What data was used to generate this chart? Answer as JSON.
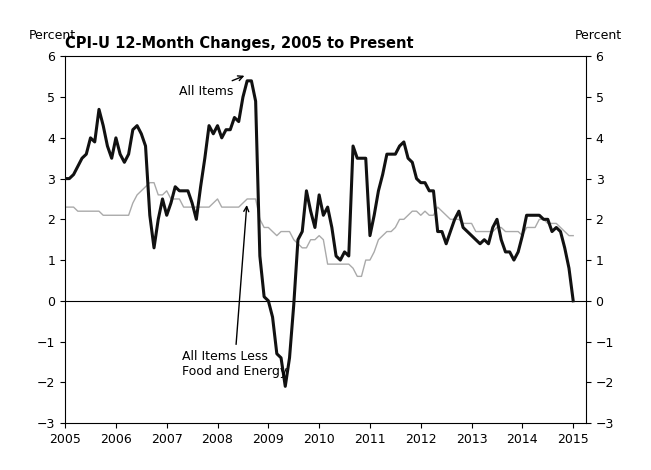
{
  "title": "CPI-U 12-Month Changes, 2005 to Present",
  "ylabel_left": "Percent",
  "ylabel_right": "Percent",
  "ylim": [
    -3,
    6
  ],
  "yticks": [
    -3,
    -2,
    -1,
    0,
    1,
    2,
    3,
    4,
    5,
    6
  ],
  "xlim_start": 2005.0,
  "xlim_end": 2015.25,
  "xticks": [
    2005,
    2006,
    2007,
    2008,
    2009,
    2010,
    2011,
    2012,
    2013,
    2014,
    2015
  ],
  "background_color": "#ffffff",
  "all_items_color": "#111111",
  "core_color": "#aaaaaa",
  "all_items_linewidth": 2.2,
  "core_linewidth": 1.0,
  "annotation_all_items": "All Items",
  "annotation_core": "All Items Less\nFood and Energy",
  "all_items_x": [
    2005.0,
    2005.083,
    2005.167,
    2005.25,
    2005.333,
    2005.417,
    2005.5,
    2005.583,
    2005.667,
    2005.75,
    2005.833,
    2005.917,
    2006.0,
    2006.083,
    2006.167,
    2006.25,
    2006.333,
    2006.417,
    2006.5,
    2006.583,
    2006.667,
    2006.75,
    2006.833,
    2006.917,
    2007.0,
    2007.083,
    2007.167,
    2007.25,
    2007.333,
    2007.417,
    2007.5,
    2007.583,
    2007.667,
    2007.75,
    2007.833,
    2007.917,
    2008.0,
    2008.083,
    2008.167,
    2008.25,
    2008.333,
    2008.417,
    2008.5,
    2008.583,
    2008.667,
    2008.75,
    2008.833,
    2008.917,
    2009.0,
    2009.083,
    2009.167,
    2009.25,
    2009.333,
    2009.417,
    2009.5,
    2009.583,
    2009.667,
    2009.75,
    2009.833,
    2009.917,
    2010.0,
    2010.083,
    2010.167,
    2010.25,
    2010.333,
    2010.417,
    2010.5,
    2010.583,
    2010.667,
    2010.75,
    2010.833,
    2010.917,
    2011.0,
    2011.083,
    2011.167,
    2011.25,
    2011.333,
    2011.417,
    2011.5,
    2011.583,
    2011.667,
    2011.75,
    2011.833,
    2011.917,
    2012.0,
    2012.083,
    2012.167,
    2012.25,
    2012.333,
    2012.417,
    2012.5,
    2012.583,
    2012.667,
    2012.75,
    2012.833,
    2012.917,
    2013.0,
    2013.083,
    2013.167,
    2013.25,
    2013.333,
    2013.417,
    2013.5,
    2013.583,
    2013.667,
    2013.75,
    2013.833,
    2013.917,
    2014.0,
    2014.083,
    2014.167,
    2014.25,
    2014.333,
    2014.417,
    2014.5,
    2014.583,
    2014.667,
    2014.75,
    2014.833,
    2014.917,
    2015.0
  ],
  "all_items_y": [
    3.0,
    3.0,
    3.1,
    3.3,
    3.5,
    3.6,
    4.0,
    3.9,
    4.7,
    4.3,
    3.8,
    3.5,
    4.0,
    3.6,
    3.4,
    3.6,
    4.2,
    4.3,
    4.1,
    3.8,
    2.1,
    1.3,
    2.0,
    2.5,
    2.1,
    2.4,
    2.8,
    2.7,
    2.7,
    2.7,
    2.4,
    2.0,
    2.8,
    3.5,
    4.3,
    4.1,
    4.3,
    4.0,
    4.2,
    4.2,
    4.5,
    4.4,
    5.0,
    5.4,
    5.4,
    4.9,
    1.1,
    0.1,
    0.0,
    -0.4,
    -1.3,
    -1.4,
    -2.1,
    -1.4,
    -0.1,
    1.5,
    1.7,
    2.7,
    2.2,
    1.8,
    2.6,
    2.1,
    2.3,
    1.8,
    1.1,
    1.0,
    1.2,
    1.1,
    3.8,
    3.5,
    3.5,
    3.5,
    1.6,
    2.1,
    2.7,
    3.1,
    3.6,
    3.6,
    3.6,
    3.8,
    3.9,
    3.5,
    3.4,
    3.0,
    2.9,
    2.9,
    2.7,
    2.7,
    1.7,
    1.7,
    1.4,
    1.7,
    2.0,
    2.2,
    1.8,
    1.7,
    1.6,
    1.5,
    1.4,
    1.5,
    1.4,
    1.8,
    2.0,
    1.5,
    1.2,
    1.2,
    1.0,
    1.2,
    1.6,
    2.1,
    2.1,
    2.1,
    2.1,
    2.0,
    2.0,
    1.7,
    1.8,
    1.7,
    1.3,
    0.8,
    0.0
  ],
  "core_x": [
    2005.0,
    2005.083,
    2005.167,
    2005.25,
    2005.333,
    2005.417,
    2005.5,
    2005.583,
    2005.667,
    2005.75,
    2005.833,
    2005.917,
    2006.0,
    2006.083,
    2006.167,
    2006.25,
    2006.333,
    2006.417,
    2006.5,
    2006.583,
    2006.667,
    2006.75,
    2006.833,
    2006.917,
    2007.0,
    2007.083,
    2007.167,
    2007.25,
    2007.333,
    2007.417,
    2007.5,
    2007.583,
    2007.667,
    2007.75,
    2007.833,
    2007.917,
    2008.0,
    2008.083,
    2008.167,
    2008.25,
    2008.333,
    2008.417,
    2008.5,
    2008.583,
    2008.667,
    2008.75,
    2008.833,
    2008.917,
    2009.0,
    2009.083,
    2009.167,
    2009.25,
    2009.333,
    2009.417,
    2009.5,
    2009.583,
    2009.667,
    2009.75,
    2009.833,
    2009.917,
    2010.0,
    2010.083,
    2010.167,
    2010.25,
    2010.333,
    2010.417,
    2010.5,
    2010.583,
    2010.667,
    2010.75,
    2010.833,
    2010.917,
    2011.0,
    2011.083,
    2011.167,
    2011.25,
    2011.333,
    2011.417,
    2011.5,
    2011.583,
    2011.667,
    2011.75,
    2011.833,
    2011.917,
    2012.0,
    2012.083,
    2012.167,
    2012.25,
    2012.333,
    2012.417,
    2012.5,
    2012.583,
    2012.667,
    2012.75,
    2012.833,
    2012.917,
    2013.0,
    2013.083,
    2013.167,
    2013.25,
    2013.333,
    2013.417,
    2013.5,
    2013.583,
    2013.667,
    2013.75,
    2013.833,
    2013.917,
    2014.0,
    2014.083,
    2014.167,
    2014.25,
    2014.333,
    2014.417,
    2014.5,
    2014.583,
    2014.667,
    2014.75,
    2014.833,
    2014.917,
    2015.0
  ],
  "core_y": [
    2.3,
    2.3,
    2.3,
    2.2,
    2.2,
    2.2,
    2.2,
    2.2,
    2.2,
    2.1,
    2.1,
    2.1,
    2.1,
    2.1,
    2.1,
    2.1,
    2.4,
    2.6,
    2.7,
    2.8,
    2.9,
    2.9,
    2.6,
    2.6,
    2.7,
    2.5,
    2.5,
    2.5,
    2.3,
    2.3,
    2.3,
    2.3,
    2.3,
    2.3,
    2.3,
    2.4,
    2.5,
    2.3,
    2.3,
    2.3,
    2.3,
    2.3,
    2.4,
    2.5,
    2.5,
    2.5,
    2.0,
    1.8,
    1.8,
    1.7,
    1.6,
    1.7,
    1.7,
    1.7,
    1.5,
    1.4,
    1.3,
    1.3,
    1.5,
    1.5,
    1.6,
    1.5,
    0.9,
    0.9,
    0.9,
    0.9,
    0.9,
    0.9,
    0.8,
    0.6,
    0.6,
    1.0,
    1.0,
    1.2,
    1.5,
    1.6,
    1.7,
    1.7,
    1.8,
    2.0,
    2.0,
    2.1,
    2.2,
    2.2,
    2.1,
    2.2,
    2.1,
    2.1,
    2.3,
    2.2,
    2.1,
    2.0,
    2.0,
    2.0,
    1.9,
    1.9,
    1.9,
    1.7,
    1.7,
    1.7,
    1.7,
    1.7,
    1.8,
    1.8,
    1.7,
    1.7,
    1.7,
    1.7,
    1.6,
    1.8,
    1.8,
    1.8,
    2.0,
    2.0,
    1.9,
    1.9,
    1.9,
    1.8,
    1.7,
    1.6,
    1.6
  ]
}
